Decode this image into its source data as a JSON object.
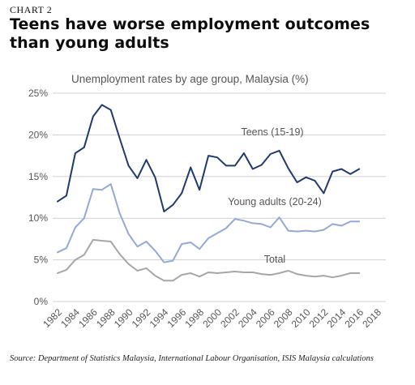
{
  "header": {
    "kicker": "CHART 2",
    "title": "Teens have worse employment outcomes than young adults"
  },
  "source": "Source: Department of Statistics Malaysia, International Labour Organisation, ISIS Malaysia calculations",
  "chart_data": {
    "type": "line",
    "title": "Unemployment rates by age group, Malaysia (%)",
    "x": [
      1982,
      1983,
      1984,
      1985,
      1986,
      1987,
      1988,
      1989,
      1990,
      1991,
      1992,
      1993,
      1994,
      1995,
      1996,
      1997,
      1998,
      1999,
      2000,
      2001,
      2002,
      2003,
      2004,
      2005,
      2006,
      2007,
      2008,
      2009,
      2010,
      2011,
      2012,
      2013,
      2014,
      2015,
      2016,
      2017,
      2018
    ],
    "xticks": [
      "1982",
      "1984",
      "1986",
      "1988",
      "1990",
      "1992",
      "1994",
      "1996",
      "1998",
      "2000",
      "2002",
      "2004",
      "2006",
      "2008",
      "2010",
      "2012",
      "2014",
      "2016",
      "2018"
    ],
    "yticks": [
      "0%",
      "5%",
      "10%",
      "15%",
      "20%",
      "25%"
    ],
    "ylim": [
      0,
      25
    ],
    "grid": "horizontal",
    "series": [
      {
        "name": "Teens (15-19)",
        "color": "#1f3a6e",
        "values": [
          12.0,
          12.7,
          17.8,
          18.5,
          22.2,
          23.6,
          23.0,
          19.6,
          16.3,
          14.8,
          17.0,
          14.9,
          10.8,
          11.6,
          13.0,
          16.1,
          13.4,
          17.5,
          17.3,
          16.3,
          16.3,
          17.8,
          15.9,
          16.4,
          17.7,
          18.1,
          16.0,
          14.3,
          14.9,
          14.5,
          13.0,
          15.6,
          15.9,
          15.3,
          15.9,
          null,
          null
        ]
      },
      {
        "name": "Young adults (20-24)",
        "color": "#95a9d6",
        "values": [
          5.9,
          6.4,
          8.9,
          10.0,
          13.5,
          13.4,
          14.1,
          10.6,
          8.1,
          6.6,
          7.2,
          6.1,
          4.7,
          4.9,
          6.9,
          7.1,
          6.3,
          7.6,
          8.2,
          8.8,
          9.9,
          9.7,
          9.4,
          9.3,
          8.9,
          10.1,
          8.5,
          8.4,
          8.5,
          8.4,
          8.6,
          9.3,
          9.1,
          9.6,
          9.6,
          null,
          null
        ]
      },
      {
        "name": "Total",
        "color": "#a6a6a6",
        "values": [
          3.4,
          3.8,
          5.0,
          5.6,
          7.4,
          7.3,
          7.2,
          5.7,
          4.5,
          3.7,
          4.0,
          3.1,
          2.5,
          2.5,
          3.2,
          3.4,
          3.0,
          3.5,
          3.4,
          3.5,
          3.6,
          3.5,
          3.5,
          3.3,
          3.2,
          3.4,
          3.7,
          3.3,
          3.1,
          3.0,
          3.1,
          2.9,
          3.1,
          3.4,
          3.4,
          null,
          null
        ]
      }
    ],
    "grid_color": "#d0d0d0"
  }
}
